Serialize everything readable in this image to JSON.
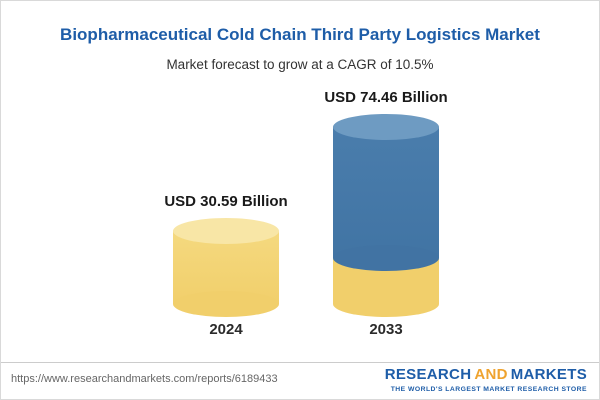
{
  "chart_data": {
    "type": "bar",
    "title": "Biopharmaceutical Cold Chain Third Party Logistics Market",
    "subtitle": "Market forecast to grow at a CAGR of 10.5%",
    "categories": [
      "2024",
      "2033"
    ],
    "values": [
      30.59,
      74.46
    ],
    "value_labels": [
      "USD 30.59 Billion",
      "USD 74.46 Billion"
    ],
    "unit": "USD Billion",
    "cagr": "10.5%",
    "ylim": [
      0,
      80
    ],
    "grid": false,
    "legend": "none",
    "colors": {
      "bar_2024": "#F1CF6B",
      "bar_2033": "#3E71A1",
      "title": "#1E5DA8"
    }
  },
  "footer": {
    "url": "https://www.researchandmarkets.com/reports/6189433",
    "logo": {
      "research": "RESEARCH",
      "and": "AND",
      "markets": "MARKETS",
      "tagline": "THE WORLD'S LARGEST MARKET RESEARCH STORE"
    }
  }
}
